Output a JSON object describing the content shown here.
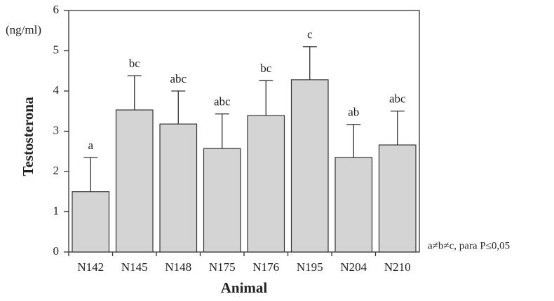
{
  "chart_data": {
    "type": "bar",
    "ylabel": "Testosterona",
    "unit": "(ng/ml)",
    "xlabel": "Animal",
    "note": "a≠b≠c, para P≤0,05",
    "categories": [
      "N142",
      "N145",
      "N148",
      "N175",
      "N176",
      "N195",
      "N204",
      "N210"
    ],
    "values": [
      1.5,
      3.53,
      3.18,
      2.57,
      3.39,
      4.28,
      2.35,
      2.66
    ],
    "errors": [
      0.85,
      0.85,
      0.82,
      0.86,
      0.87,
      0.82,
      0.82,
      0.84
    ],
    "annotations": [
      "a",
      "bc",
      "abc",
      "abc",
      "bc",
      "c",
      "ab",
      "abc"
    ],
    "color": "#d4d4d4",
    "ylim": [
      0,
      6
    ],
    "yticks": [
      0,
      1,
      2,
      3,
      4,
      5,
      6
    ]
  }
}
